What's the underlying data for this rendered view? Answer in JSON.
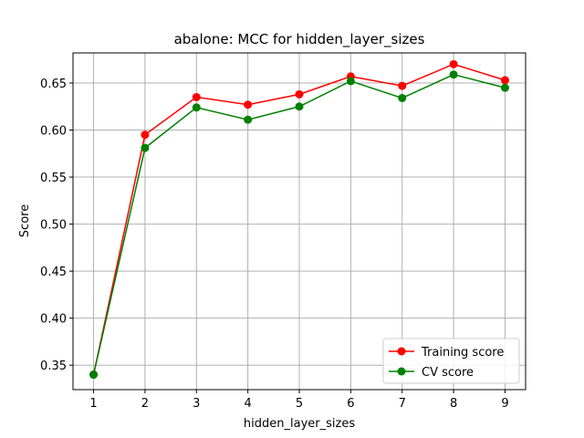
{
  "chart_data": {
    "type": "line",
    "title": "abalone: MCC for hidden_layer_sizes",
    "xlabel": "hidden_layer_sizes",
    "ylabel": "Score",
    "x": [
      1,
      2,
      3,
      4,
      5,
      6,
      7,
      8,
      9
    ],
    "xticks": [
      "1",
      "2",
      "3",
      "4",
      "5",
      "6",
      "7",
      "8",
      "9"
    ],
    "yticks": [
      "0.35",
      "0.40",
      "0.45",
      "0.50",
      "0.55",
      "0.60",
      "0.65"
    ],
    "xlim": [
      0.6,
      9.4
    ],
    "ylim": [
      0.324,
      0.682
    ],
    "grid": true,
    "legend_position": "lower-right",
    "series": [
      {
        "name": "Training score",
        "color": "#ff0000",
        "values": [
          0.34,
          0.595,
          0.635,
          0.627,
          0.638,
          0.657,
          0.647,
          0.67,
          0.653
        ]
      },
      {
        "name": "CV score",
        "color": "#008000",
        "values": [
          0.34,
          0.581,
          0.624,
          0.611,
          0.625,
          0.652,
          0.634,
          0.659,
          0.645
        ]
      }
    ]
  }
}
